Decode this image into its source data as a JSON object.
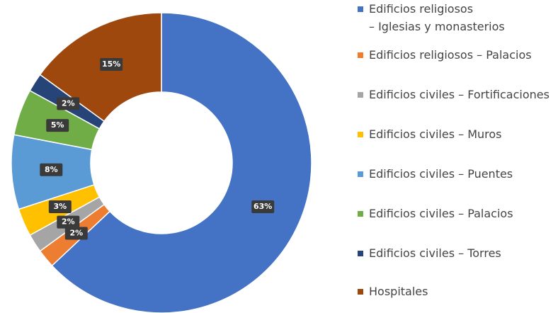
{
  "chart_data": {
    "type": "donut",
    "categories": [
      "Edificios religiosos\n– Iglesias y monasterios",
      "Edificios religiosos – Palacios",
      "Edificios civiles – Fortificaciones",
      "Edificios civiles – Muros",
      "Edificios civiles – Puentes",
      "Edificios civiles – Palacios",
      "Edificios civiles – Torres",
      "Hospitales"
    ],
    "values": [
      63,
      2,
      2,
      3,
      8,
      5,
      2,
      15
    ],
    "value_labels": [
      "63%",
      "2%",
      "2%",
      "3%",
      "8%",
      "5%",
      "2%",
      "15%"
    ],
    "colors": [
      "#4472c4",
      "#ed7d31",
      "#a5a5a5",
      "#ffc000",
      "#5b9bd5",
      "#70ad47",
      "#264478",
      "#9e480e"
    ]
  }
}
